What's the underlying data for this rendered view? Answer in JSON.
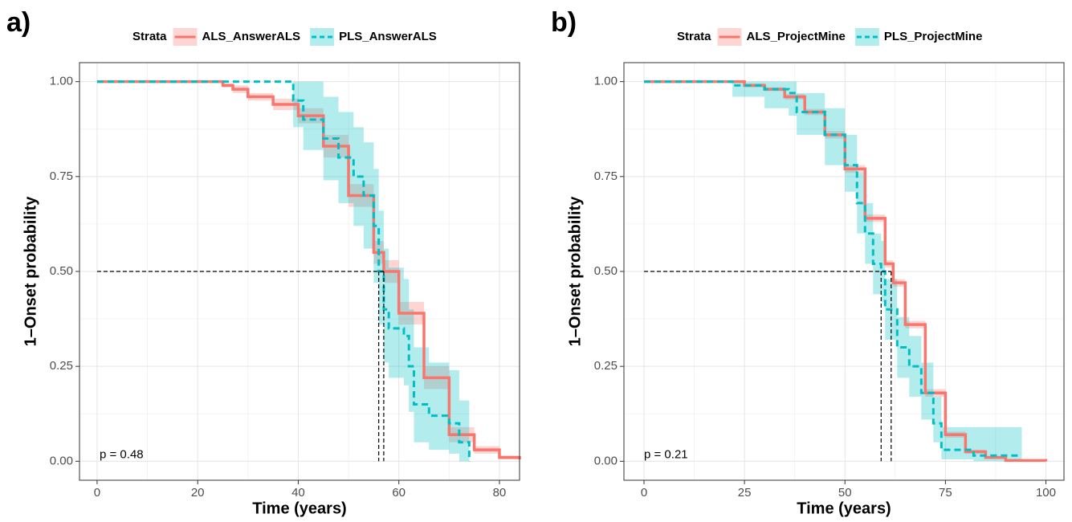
{
  "chart_data": [
    {
      "type": "line",
      "step": true,
      "panel_label": "a)",
      "legend_title": "Strata",
      "xlabel": "Time (years)",
      "ylabel": "1–Onset probability",
      "annotation": "p = 0.48",
      "xlim": [
        -3.5,
        84
      ],
      "ylim": [
        -0.05,
        1.05
      ],
      "xticks": [
        0,
        20,
        40,
        60,
        80
      ],
      "yticks": [
        {
          "value": 0,
          "label": "0.00"
        },
        {
          "value": 0.25,
          "label": "0.25"
        },
        {
          "value": 0.5,
          "label": "0.50"
        },
        {
          "value": 0.75,
          "label": "0.75"
        },
        {
          "value": 1,
          "label": "1.00"
        }
      ],
      "grid": true,
      "legend": "top",
      "median_level": 0.5,
      "series": [
        {
          "name": "ALS_AnswerALS",
          "color": "#f8766d",
          "line_style": "solid",
          "median": 57,
          "x": [
            0,
            20,
            25,
            27,
            30,
            35,
            40,
            45,
            50,
            55,
            57,
            60,
            65,
            70,
            75,
            80,
            84
          ],
          "values": [
            1,
            1,
            0.99,
            0.98,
            0.96,
            0.94,
            0.91,
            0.83,
            0.7,
            0.55,
            0.5,
            0.39,
            0.22,
            0.07,
            0.03,
            0.01,
            0.005
          ],
          "lower": [
            1,
            1,
            0.985,
            0.97,
            0.95,
            0.925,
            0.89,
            0.8,
            0.67,
            0.52,
            0.47,
            0.36,
            0.19,
            0.05,
            0.02,
            0.005,
            0
          ],
          "upper": [
            1,
            1,
            0.995,
            0.99,
            0.97,
            0.955,
            0.93,
            0.86,
            0.73,
            0.58,
            0.53,
            0.42,
            0.25,
            0.09,
            0.04,
            0.015,
            0.01
          ]
        },
        {
          "name": "PLS_AnswerALS",
          "color": "#00bfc4",
          "line_style": "dashed",
          "median": 56,
          "x": [
            0,
            39,
            41,
            45,
            48,
            51,
            53,
            55,
            56,
            57,
            58,
            61,
            62,
            63,
            66,
            70,
            72,
            74
          ],
          "values": [
            1,
            0.95,
            0.9,
            0.85,
            0.8,
            0.75,
            0.7,
            0.62,
            0.5,
            0.4,
            0.35,
            0.33,
            0.25,
            0.15,
            0.12,
            0.1,
            0.05,
            0
          ],
          "lower": [
            1,
            0.88,
            0.82,
            0.74,
            0.68,
            0.62,
            0.56,
            0.47,
            0.36,
            0.26,
            0.22,
            0.2,
            0.13,
            0.05,
            0.03,
            0.02,
            0,
            0
          ],
          "upper": [
            1,
            1,
            1,
            0.96,
            0.92,
            0.88,
            0.84,
            0.77,
            0.66,
            0.56,
            0.51,
            0.48,
            0.4,
            0.3,
            0.26,
            0.24,
            0.16,
            0
          ]
        }
      ]
    },
    {
      "type": "line",
      "step": true,
      "panel_label": "b)",
      "legend_title": "Strata",
      "xlabel": "Time (years)",
      "ylabel": "1–Onset probability",
      "annotation": "p = 0.21",
      "xlim": [
        -5,
        104.5
      ],
      "ylim": [
        -0.05,
        1.05
      ],
      "xticks": [
        0,
        25,
        50,
        75,
        100
      ],
      "yticks": [
        {
          "value": 0,
          "label": "0.00"
        },
        {
          "value": 0.25,
          "label": "0.25"
        },
        {
          "value": 0.5,
          "label": "0.50"
        },
        {
          "value": 0.75,
          "label": "0.75"
        },
        {
          "value": 1,
          "label": "1.00"
        }
      ],
      "grid": true,
      "legend": "top",
      "median_level": 0.5,
      "series": [
        {
          "name": "ALS_ProjectMine",
          "color": "#f8766d",
          "line_style": "solid",
          "median": 61.5,
          "x": [
            0,
            20,
            25,
            30,
            35,
            40,
            45,
            50,
            55,
            60,
            62,
            65,
            70,
            75,
            80,
            85,
            90,
            100
          ],
          "values": [
            1,
            1,
            0.99,
            0.98,
            0.96,
            0.92,
            0.86,
            0.77,
            0.64,
            0.52,
            0.47,
            0.36,
            0.18,
            0.07,
            0.025,
            0.01,
            0.002,
            0
          ],
          "lower": [
            1,
            1,
            0.985,
            0.975,
            0.953,
            0.912,
            0.85,
            0.76,
            0.63,
            0.51,
            0.46,
            0.35,
            0.17,
            0.062,
            0.02,
            0.006,
            0,
            0
          ],
          "upper": [
            1,
            1,
            0.995,
            0.985,
            0.967,
            0.928,
            0.87,
            0.78,
            0.65,
            0.53,
            0.48,
            0.37,
            0.19,
            0.078,
            0.03,
            0.014,
            0.004,
            0
          ]
        },
        {
          "name": "PLS_ProjectMine",
          "color": "#00bfc4",
          "line_style": "dashed",
          "median": 59,
          "x": [
            0,
            22,
            30,
            36,
            38,
            45,
            50,
            53,
            55,
            57,
            59,
            60,
            63,
            66,
            69,
            72,
            74,
            80,
            82,
            94
          ],
          "values": [
            1,
            0.99,
            0.98,
            0.97,
            0.92,
            0.86,
            0.78,
            0.68,
            0.6,
            0.52,
            0.5,
            0.4,
            0.3,
            0.25,
            0.18,
            0.1,
            0.03,
            0.03,
            0.015,
            0.015
          ],
          "lower": [
            1,
            0.96,
            0.93,
            0.91,
            0.86,
            0.78,
            0.71,
            0.6,
            0.52,
            0.44,
            0.42,
            0.32,
            0.22,
            0.17,
            0.11,
            0.05,
            0.005,
            0.005,
            0,
            0
          ],
          "upper": [
            1,
            1,
            1,
            1,
            0.97,
            0.93,
            0.86,
            0.76,
            0.68,
            0.6,
            0.58,
            0.48,
            0.38,
            0.33,
            0.26,
            0.17,
            0.09,
            0.09,
            0.09,
            0.09
          ]
        }
      ]
    }
  ]
}
